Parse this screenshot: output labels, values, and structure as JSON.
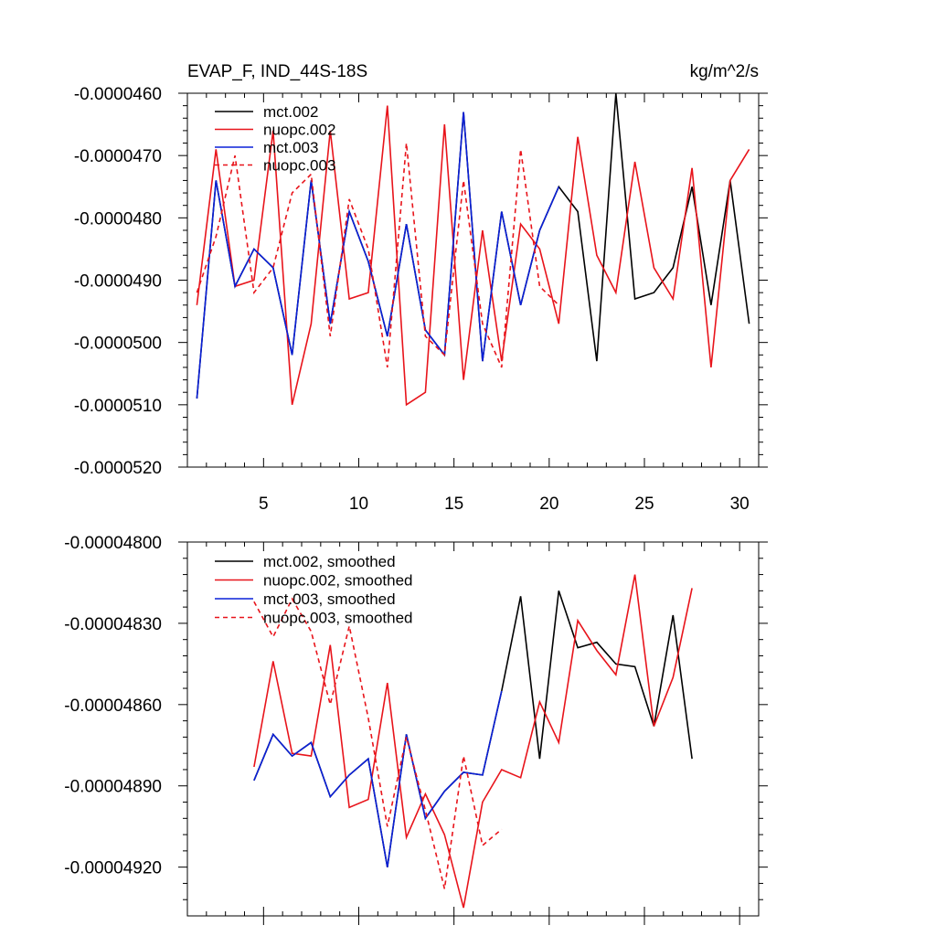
{
  "chart_data": [
    {
      "type": "line",
      "title": "EVAP_F, IND_44S-18S",
      "units": "kg/m^2/s",
      "xlim": [
        1,
        31
      ],
      "ylim": [
        -5.2e-05,
        -4.6e-05
      ],
      "x_ticks": [
        5,
        10,
        15,
        20,
        25,
        30
      ],
      "x_tick_labels": [
        "5",
        "10",
        "15",
        "20",
        "25",
        "30"
      ],
      "y_ticks": [
        -5.2e-05,
        -5.1e-05,
        -5e-05,
        -4.9e-05,
        -4.8e-05,
        -4.7e-05,
        -4.6e-05
      ],
      "y_tick_labels": [
        "-0.0000520",
        "-0.0000510",
        "-0.0000500",
        "-0.0000490",
        "-0.0000480",
        "-0.0000470",
        "-0.0000460"
      ],
      "legend_position": "top-left",
      "series": [
        {
          "name": "mct.002",
          "color": "#000000",
          "dash": "solid",
          "x": [
            1.5,
            2.5,
            3.5,
            4.5,
            5.5,
            6.5,
            7.5,
            8.5,
            9.5,
            10.5,
            11.5,
            12.5,
            13.5,
            14.5,
            15.5,
            16.5,
            17.5,
            18.5,
            19.5,
            20.5,
            21.5,
            22.5,
            23.5,
            24.5,
            25.5,
            26.5,
            27.5,
            28.5,
            29.5,
            30.5
          ],
          "values": [
            -5.09e-05,
            -4.74e-05,
            -4.91e-05,
            -4.85e-05,
            -4.88e-05,
            -5.02e-05,
            -4.74e-05,
            -4.97e-05,
            -4.79e-05,
            -4.87e-05,
            -4.99e-05,
            -4.81e-05,
            -4.98e-05,
            -5.02e-05,
            -4.63e-05,
            -5.03e-05,
            -4.79e-05,
            -4.94e-05,
            -4.82e-05,
            -4.75e-05,
            -4.79e-05,
            -5.03e-05,
            -4.6e-05,
            -4.93e-05,
            -4.92e-05,
            -4.88e-05,
            -4.75e-05,
            -4.94e-05,
            -4.74e-05,
            -4.97e-05
          ]
        },
        {
          "name": "nuopc.002",
          "color": "#e8141b",
          "dash": "solid",
          "x": [
            1.5,
            2.5,
            3.5,
            4.5,
            5.5,
            6.5,
            7.5,
            8.5,
            9.5,
            10.5,
            11.5,
            12.5,
            13.5,
            14.5,
            15.5,
            16.5,
            17.5,
            18.5,
            19.5,
            20.5,
            21.5,
            22.5,
            23.5,
            24.5,
            25.5,
            26.5,
            27.5,
            28.5,
            29.5,
            30.5
          ],
          "values": [
            -4.94e-05,
            -4.69e-05,
            -4.91e-05,
            -4.9e-05,
            -4.66e-05,
            -5.1e-05,
            -4.97e-05,
            -4.66e-05,
            -4.93e-05,
            -4.92e-05,
            -4.62e-05,
            -5.1e-05,
            -5.08e-05,
            -4.65e-05,
            -5.06e-05,
            -4.82e-05,
            -5.03e-05,
            -4.81e-05,
            -4.85e-05,
            -4.97e-05,
            -4.67e-05,
            -4.86e-05,
            -4.92e-05,
            -4.71e-05,
            -4.88e-05,
            -4.93e-05,
            -4.72e-05,
            -5.04e-05,
            -4.74e-05,
            -4.69e-05
          ]
        },
        {
          "name": "mct.003",
          "color": "#0a20d8",
          "dash": "solid",
          "x": [
            1.5,
            2.5,
            3.5,
            4.5,
            5.5,
            6.5,
            7.5,
            8.5,
            9.5,
            10.5,
            11.5,
            12.5,
            13.5,
            14.5,
            15.5,
            16.5,
            17.5,
            18.5,
            19.5,
            20.5
          ],
          "values": [
            -5.09e-05,
            -4.74e-05,
            -4.91e-05,
            -4.85e-05,
            -4.88e-05,
            -5.02e-05,
            -4.74e-05,
            -4.97e-05,
            -4.79e-05,
            -4.87e-05,
            -4.99e-05,
            -4.81e-05,
            -4.98e-05,
            -5.02e-05,
            -4.63e-05,
            -5.03e-05,
            -4.79e-05,
            -4.94e-05,
            -4.82e-05,
            -4.75e-05
          ]
        },
        {
          "name": "nuopc.003",
          "color": "#e8141b",
          "dash": "dashed",
          "x": [
            1.5,
            2.5,
            3.5,
            4.5,
            5.5,
            6.5,
            7.5,
            8.5,
            9.5,
            10.5,
            11.5,
            12.5,
            13.5,
            14.5,
            15.5,
            16.5,
            17.5,
            18.5,
            19.5,
            20.5
          ],
          "values": [
            -4.92e-05,
            -4.83e-05,
            -4.7e-05,
            -4.92e-05,
            -4.88e-05,
            -4.76e-05,
            -4.73e-05,
            -4.99e-05,
            -4.77e-05,
            -4.85e-05,
            -5.04e-05,
            -4.68e-05,
            -4.99e-05,
            -5.02e-05,
            -4.74e-05,
            -4.97e-05,
            -5.04e-05,
            -4.69e-05,
            -4.91e-05,
            -4.94e-05
          ]
        }
      ]
    },
    {
      "type": "line",
      "title": "",
      "xlim": [
        1,
        31
      ],
      "ylim": [
        -4.938e-05,
        -4.8e-05
      ],
      "x_ticks": [
        5,
        10,
        15,
        20,
        25,
        30
      ],
      "x_tick_labels": [],
      "y_ticks": [
        -4.92e-05,
        -4.89e-05,
        -4.86e-05,
        -4.83e-05,
        -4.8e-05
      ],
      "y_tick_labels": [
        "-0.00004920",
        "-0.00004890",
        "-0.00004860",
        "-0.00004830",
        "-0.00004800"
      ],
      "legend_position": "top-left",
      "series": [
        {
          "name": "mct.002, smoothed",
          "color": "#000000",
          "dash": "solid",
          "x": [
            4.5,
            5.5,
            6.5,
            7.5,
            8.5,
            9.5,
            10.5,
            11.5,
            12.5,
            13.5,
            14.5,
            15.5,
            16.5,
            17.5,
            18.5,
            19.5,
            20.5,
            21.5,
            22.5,
            23.5,
            24.5,
            25.5,
            26.5,
            27.5
          ],
          "values": [
            -4.888e-05,
            -4.871e-05,
            -4.879e-05,
            -4.874e-05,
            -4.894e-05,
            -4.886e-05,
            -4.88e-05,
            -4.92e-05,
            -4.871e-05,
            -4.902e-05,
            -4.892e-05,
            -4.885e-05,
            -4.886e-05,
            -4.855e-05,
            -4.82e-05,
            -4.88e-05,
            -4.818e-05,
            -4.839e-05,
            -4.837e-05,
            -4.845e-05,
            -4.846e-05,
            -4.868e-05,
            -4.827e-05,
            -4.88e-05
          ]
        },
        {
          "name": "nuopc.002, smoothed",
          "color": "#e8141b",
          "dash": "solid",
          "x": [
            4.5,
            5.5,
            6.5,
            7.5,
            8.5,
            9.5,
            10.5,
            11.5,
            12.5,
            13.5,
            14.5,
            15.5,
            16.5,
            17.5,
            18.5,
            19.5,
            20.5,
            21.5,
            22.5,
            23.5,
            24.5,
            25.5,
            26.5,
            27.5
          ],
          "values": [
            -4.883e-05,
            -4.844e-05,
            -4.878e-05,
            -4.879e-05,
            -4.838e-05,
            -4.898e-05,
            -4.895e-05,
            -4.852e-05,
            -4.909e-05,
            -4.893e-05,
            -4.908e-05,
            -4.935e-05,
            -4.896e-05,
            -4.884e-05,
            -4.887e-05,
            -4.859e-05,
            -4.874e-05,
            -4.829e-05,
            -4.84e-05,
            -4.849e-05,
            -4.812e-05,
            -4.868e-05,
            -4.85e-05,
            -4.817e-05
          ]
        },
        {
          "name": "mct.003, smoothed",
          "color": "#0a20d8",
          "dash": "solid",
          "x": [
            4.5,
            5.5,
            6.5,
            7.5,
            8.5,
            9.5,
            10.5,
            11.5,
            12.5,
            13.5,
            14.5,
            15.5,
            16.5,
            17.5
          ],
          "values": [
            -4.888e-05,
            -4.871e-05,
            -4.879e-05,
            -4.874e-05,
            -4.894e-05,
            -4.886e-05,
            -4.88e-05,
            -4.92e-05,
            -4.871e-05,
            -4.902e-05,
            -4.892e-05,
            -4.885e-05,
            -4.886e-05,
            -4.855e-05
          ]
        },
        {
          "name": "nuopc.003, smoothed",
          "color": "#e8141b",
          "dash": "dashed",
          "x": [
            4.5,
            5.5,
            6.5,
            7.5,
            8.5,
            9.5,
            10.5,
            11.5,
            12.5,
            13.5,
            14.5,
            15.5,
            16.5,
            17.5
          ],
          "values": [
            -4.822e-05,
            -4.835e-05,
            -4.821e-05,
            -4.833e-05,
            -4.86e-05,
            -4.831e-05,
            -4.865e-05,
            -4.905e-05,
            -4.872e-05,
            -4.899e-05,
            -4.928e-05,
            -4.879e-05,
            -4.912e-05,
            -4.906e-05
          ]
        }
      ]
    }
  ]
}
